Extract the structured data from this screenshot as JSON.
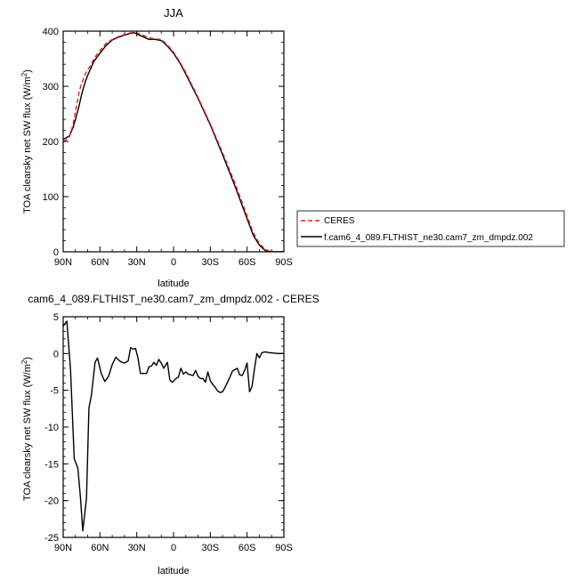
{
  "chart_data": [
    {
      "type": "line",
      "title": "JJA",
      "xlabel": "latitude",
      "ylabel": "TOA clearsky net SW flux (W/m²)",
      "ylim": [
        0,
        400
      ],
      "xlim": [
        90,
        -90
      ],
      "x_ticks": [
        90,
        60,
        30,
        0,
        -30,
        -60,
        -90
      ],
      "x_tick_labels": [
        "90N",
        "60N",
        "30N",
        "0",
        "30S",
        "60S",
        "90S"
      ],
      "y_ticks": [
        0,
        100,
        200,
        300,
        400
      ],
      "y_tick_labels": [
        "0",
        "100",
        "200",
        "300",
        "400"
      ],
      "legend": {
        "placement": "outside-right-bottom"
      },
      "series": [
        {
          "name": "CERES",
          "color": "#e8221d",
          "style": "dashed",
          "x": [
            90,
            88,
            85,
            82,
            80,
            77,
            75,
            72,
            70,
            67,
            65,
            60,
            55,
            50,
            45,
            40,
            35,
            32,
            30,
            25,
            20,
            15,
            10,
            5,
            0,
            -5,
            -10,
            -20,
            -30,
            -40,
            -50,
            -55,
            -60,
            -65,
            -70,
            -75,
            -80,
            -85,
            -90
          ],
          "values": [
            200,
            202,
            208,
            230,
            255,
            290,
            305,
            322,
            330,
            340,
            350,
            365,
            378,
            385,
            390,
            394,
            397,
            398,
            397,
            393,
            388,
            386,
            385,
            375,
            362,
            345,
            325,
            280,
            232,
            180,
            125,
            95,
            65,
            35,
            15,
            4,
            0,
            0,
            0
          ]
        },
        {
          "name": "f.cam6_4_089.FLTHIST_ne30.cam7_zm_dmpdz.002",
          "color": "#000000",
          "style": "solid",
          "x": [
            90,
            88,
            85,
            82,
            80,
            77,
            75,
            72,
            70,
            67,
            65,
            60,
            55,
            50,
            45,
            40,
            35,
            32,
            30,
            25,
            20,
            15,
            10,
            5,
            0,
            -5,
            -10,
            -20,
            -30,
            -40,
            -50,
            -55,
            -60,
            -65,
            -70,
            -75,
            -80,
            -85,
            -90
          ],
          "values": [
            204,
            206,
            210,
            225,
            240,
            265,
            285,
            308,
            320,
            335,
            345,
            360,
            374,
            384,
            389,
            393,
            396,
            397,
            395,
            390,
            385,
            385,
            383,
            373,
            360,
            343,
            322,
            278,
            230,
            176,
            120,
            90,
            60,
            30,
            12,
            2,
            0,
            0,
            0
          ]
        }
      ]
    },
    {
      "type": "line",
      "title": "cam6_4_089.FLTHIST_ne30.cam7_zm_dmpdz.002 - CERES",
      "xlabel": "latitude",
      "ylabel": "TOA clearsky net SW flux (W/m²)",
      "ylim": [
        -25,
        5
      ],
      "xlim": [
        90,
        -90
      ],
      "x_ticks": [
        90,
        60,
        30,
        0,
        -30,
        -60,
        -90
      ],
      "x_tick_labels": [
        "90N",
        "60N",
        "30N",
        "0",
        "30S",
        "60S",
        "90S"
      ],
      "y_ticks": [
        5,
        0,
        -5,
        -10,
        -15,
        -20,
        -25
      ],
      "y_tick_labels": [
        "5",
        "0",
        "-5",
        "-10",
        "-15",
        "-20",
        "-25"
      ],
      "series": [
        {
          "color": "#000000",
          "style": "solid",
          "x": [
            90,
            87,
            84,
            81,
            78,
            76,
            74,
            71,
            69,
            67,
            64,
            62,
            59,
            56,
            53,
            50,
            47,
            44,
            42,
            40,
            37,
            35,
            33,
            31,
            29,
            27,
            25,
            22,
            20,
            18,
            16,
            14,
            12,
            10,
            8,
            5,
            3,
            1,
            -2,
            -4,
            -6,
            -8,
            -10,
            -12,
            -14,
            -16,
            -18,
            -20,
            -22,
            -24,
            -26,
            -28,
            -30,
            -32,
            -34,
            -36,
            -38,
            -40,
            -42,
            -44,
            -46,
            -48,
            -50,
            -52,
            -54,
            -56,
            -58,
            -60,
            -62,
            -64,
            -66,
            -68,
            -70,
            -72,
            -74,
            -76,
            -78,
            -80,
            -85,
            -90
          ],
          "values": [
            3.7,
            4.4,
            -2.2,
            -14.3,
            -15.6,
            -19.4,
            -24.1,
            -19.7,
            -7.4,
            -5.7,
            -1.2,
            -0.6,
            -2.7,
            -3.8,
            -3.1,
            -1.5,
            -0.5,
            -1.0,
            -1.2,
            -1.3,
            -1.0,
            0.8,
            0.6,
            0.7,
            -0.6,
            -2.7,
            -2.7,
            -2.7,
            -1.8,
            -1.7,
            -1.2,
            -1.6,
            -0.8,
            -1.3,
            -2.0,
            -1.2,
            -3.6,
            -3.9,
            -3.4,
            -3.2,
            -2.0,
            -2.8,
            -2.5,
            -2.8,
            -2.9,
            -3.0,
            -2.3,
            -3.1,
            -3.4,
            -3.4,
            -3.9,
            -2.5,
            -3.7,
            -4.2,
            -4.6,
            -5.1,
            -5.3,
            -5.2,
            -4.6,
            -3.9,
            -3.2,
            -2.4,
            -2.2,
            -2.0,
            -2.9,
            -3.0,
            -2.3,
            -1.3,
            -5.2,
            -4.5,
            -2.1,
            0.0,
            -0.6,
            0.1,
            0.2,
            0.2,
            0.1,
            0.1,
            0.0,
            0.0
          ]
        }
      ]
    }
  ]
}
